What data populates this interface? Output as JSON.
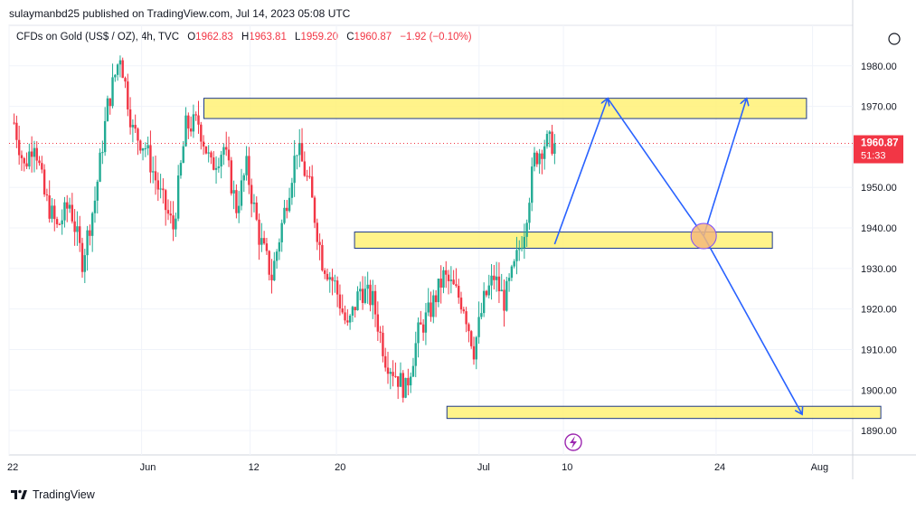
{
  "publisher_line": "sulaymanbd25 published on TradingView.com, Jul 14, 2023 05:08 UTC",
  "legend": {
    "symbol": "CFDs on Gold (US$ / OZ), 4h, TVC",
    "o_key": "O",
    "o_val": "1962.83",
    "h_key": "H",
    "h_val": "1963.81",
    "l_key": "L",
    "l_val": "1959.20",
    "c_key": "C",
    "c_val": "1960.87",
    "change": "−1.92 (−0.10%)"
  },
  "price_tag": {
    "price": "1960.87",
    "countdown": "51:33",
    "color": "#f23645"
  },
  "brand": "TradingView",
  "colors": {
    "up": "#22ab94",
    "down": "#f23645",
    "zone_fill": "#fff176",
    "zone_border": "#1e3a8a",
    "arrow": "#2962ff",
    "circle_fill": "#f5b87a",
    "circle_border": "#7c4dff",
    "grid": "#f0f3fa"
  },
  "chart_data": {
    "type": "candlestick",
    "symbol": "CFDs on Gold (US$ / OZ)",
    "timeframe": "4h",
    "y_ticks": [
      1980,
      1970,
      1960,
      1950,
      1940,
      1930,
      1920,
      1910,
      1900,
      1890
    ],
    "y_tick_labels": [
      "1980.00",
      "1970.00",
      "1960.00",
      "1950.00",
      "1940.00",
      "1930.00",
      "1920.00",
      "1910.00",
      "1900.00",
      "1890.00"
    ],
    "x_tick_labels": [
      "22",
      "Jun",
      "12",
      "20",
      "Jul",
      "10",
      "24",
      "Aug"
    ],
    "ylim": [
      1884,
      1990
    ],
    "last_close": 1960.87,
    "path_waypoints": [
      {
        "t": 0,
        "p": 1966
      },
      {
        "t": 4,
        "p": 1955
      },
      {
        "t": 8,
        "p": 1962
      },
      {
        "t": 12,
        "p": 1948
      },
      {
        "t": 17,
        "p": 1940
      },
      {
        "t": 22,
        "p": 1946
      },
      {
        "t": 27,
        "p": 1932
      },
      {
        "t": 32,
        "p": 1947
      },
      {
        "t": 37,
        "p": 1970
      },
      {
        "t": 42,
        "p": 1983
      },
      {
        "t": 47,
        "p": 1964
      },
      {
        "t": 52,
        "p": 1960
      },
      {
        "t": 58,
        "p": 1948
      },
      {
        "t": 63,
        "p": 1940
      },
      {
        "t": 68,
        "p": 1965
      },
      {
        "t": 73,
        "p": 1966
      },
      {
        "t": 78,
        "p": 1955
      },
      {
        "t": 83,
        "p": 1960
      },
      {
        "t": 88,
        "p": 1945
      },
      {
        "t": 92,
        "p": 1955
      },
      {
        "t": 97,
        "p": 1938
      },
      {
        "t": 102,
        "p": 1928
      },
      {
        "t": 107,
        "p": 1944
      },
      {
        "t": 112,
        "p": 1960
      },
      {
        "t": 117,
        "p": 1950
      },
      {
        "t": 122,
        "p": 1932
      },
      {
        "t": 127,
        "p": 1926
      },
      {
        "t": 132,
        "p": 1915
      },
      {
        "t": 137,
        "p": 1925
      },
      {
        "t": 142,
        "p": 1922
      },
      {
        "t": 147,
        "p": 1908
      },
      {
        "t": 152,
        "p": 1903
      },
      {
        "t": 155,
        "p": 1900
      },
      {
        "t": 160,
        "p": 1914
      },
      {
        "t": 165,
        "p": 1920
      },
      {
        "t": 170,
        "p": 1928
      },
      {
        "t": 174,
        "p": 1925
      },
      {
        "t": 178,
        "p": 1921
      },
      {
        "t": 182,
        "p": 1910
      },
      {
        "t": 186,
        "p": 1922
      },
      {
        "t": 190,
        "p": 1928
      },
      {
        "t": 194,
        "p": 1922
      },
      {
        "t": 198,
        "p": 1930
      },
      {
        "t": 202,
        "p": 1940
      },
      {
        "t": 206,
        "p": 1957
      },
      {
        "t": 210,
        "p": 1961
      },
      {
        "t": 214,
        "p": 1960.87
      }
    ],
    "zones": [
      {
        "from": 1967,
        "to": 1972
      },
      {
        "from": 1935,
        "to": 1939
      },
      {
        "from": 1893,
        "to": 1896
      }
    ],
    "projection": [
      {
        "label": "",
        "points": [
          [
            214,
            1936
          ],
          [
            235,
            1972
          ]
        ]
      },
      {
        "label": "",
        "points": [
          [
            235,
            1972
          ],
          [
            273,
            1938
          ]
        ]
      },
      {
        "label": "",
        "points": [
          [
            273,
            1938
          ],
          [
            290,
            1972
          ]
        ]
      },
      {
        "label": "",
        "points": [
          [
            273,
            1938
          ],
          [
            312,
            1894
          ]
        ]
      }
    ]
  }
}
